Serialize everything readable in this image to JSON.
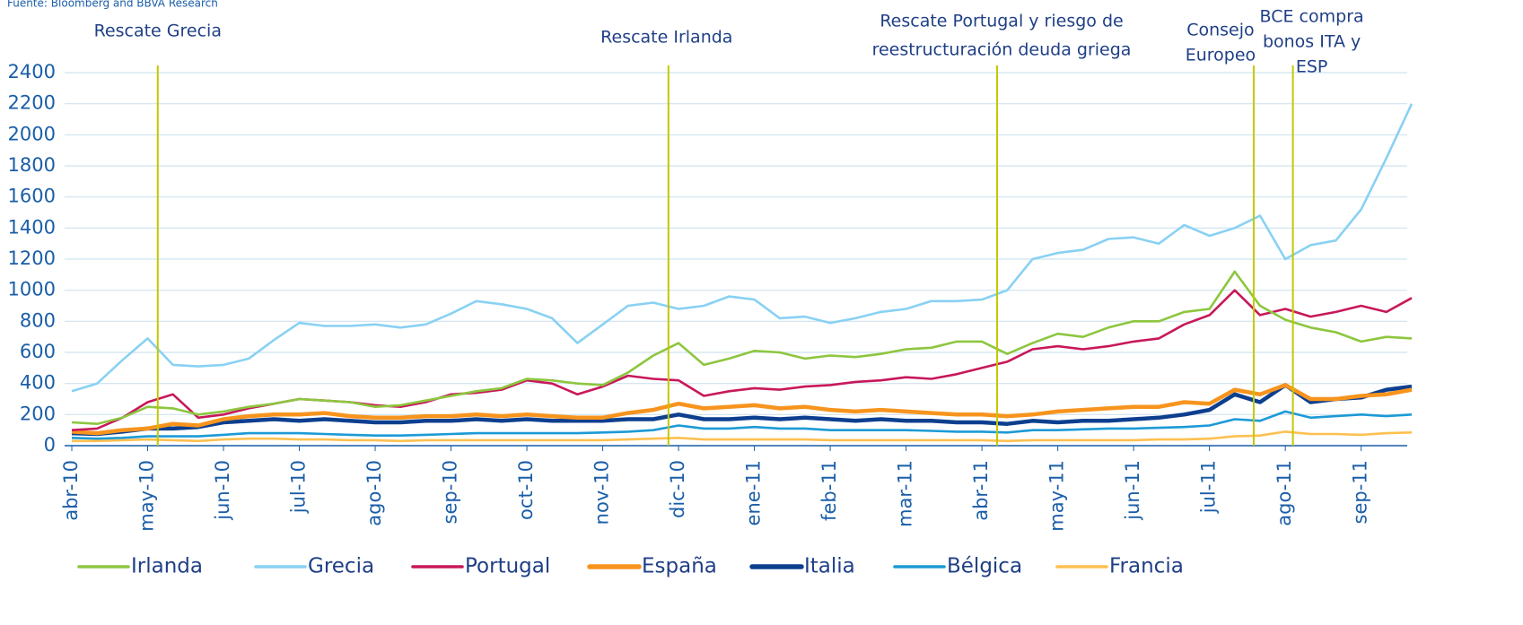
{
  "chart_data": {
    "type": "line",
    "source": "Fuente: Bloomberg and BBVA Research",
    "categories": [
      "abr-10",
      null,
      null,
      "may-10",
      null,
      null,
      "jun-10",
      null,
      null,
      "jul-10",
      null,
      null,
      "ago-10",
      null,
      null,
      "sep-10",
      null,
      null,
      "oct-10",
      null,
      null,
      "nov-10",
      null,
      null,
      "dic-10",
      null,
      null,
      "ene-11",
      null,
      null,
      "feb-11",
      null,
      null,
      "mar-11",
      null,
      null,
      "abr-11",
      null,
      null,
      "may-11",
      null,
      null,
      "jun-11",
      null,
      null,
      "jul-11",
      null,
      null,
      "ago-11",
      null,
      null,
      "sep-11",
      null,
      null
    ],
    "ylim": [
      0,
      2400
    ],
    "yticks": [
      0,
      200,
      400,
      600,
      800,
      1000,
      1200,
      1400,
      1600,
      1800,
      2000,
      2200,
      2400
    ],
    "grid": true,
    "annotations": [
      {
        "lines": [
          "Rescate Grecia"
        ],
        "x": 3.4
      },
      {
        "lines": [
          "Rescate Irlanda"
        ],
        "x": 23.6
      },
      {
        "lines": [
          "Rescate Portugal  y riesgo de",
          "reestructuración deuda griega"
        ],
        "x": 36.6
      },
      {
        "lines": [
          "Consejo",
          "Europeo"
        ],
        "x": 46.75
      },
      {
        "lines": [
          "BCE compra",
          "bonos ITA y",
          "ESP"
        ],
        "x": 48.3
      }
    ],
    "series": [
      {
        "name": "Irlanda",
        "color": "#8dc63f",
        "values": [
          150,
          140,
          180,
          250,
          240,
          200,
          220,
          250,
          270,
          300,
          290,
          280,
          250,
          260,
          290,
          320,
          350,
          370,
          430,
          420,
          400,
          390,
          470,
          580,
          660,
          520,
          560,
          610,
          600,
          560,
          580,
          570,
          590,
          620,
          630,
          670,
          670,
          590,
          660,
          720,
          700,
          760,
          800,
          800,
          860,
          880,
          1120,
          900,
          810,
          760,
          730,
          670,
          700,
          690
        ]
      },
      {
        "name": "Grecia",
        "color": "#89d1f3",
        "values": [
          350,
          400,
          550,
          690,
          520,
          510,
          520,
          560,
          680,
          790,
          770,
          770,
          780,
          760,
          780,
          850,
          930,
          910,
          880,
          820,
          660,
          780,
          900,
          920,
          880,
          900,
          960,
          940,
          820,
          830,
          790,
          820,
          860,
          880,
          930,
          930,
          940,
          1000,
          1200,
          1240,
          1260,
          1330,
          1340,
          1300,
          1420,
          1350,
          1400,
          1480,
          1200,
          1290,
          1320,
          1520,
          1850,
          2200
        ]
      },
      {
        "name": "Portugal",
        "color": "#c8185a",
        "values": [
          100,
          110,
          180,
          280,
          330,
          180,
          200,
          240,
          270,
          300,
          290,
          280,
          260,
          250,
          280,
          330,
          340,
          360,
          420,
          400,
          330,
          380,
          450,
          430,
          420,
          320,
          350,
          370,
          360,
          380,
          390,
          410,
          420,
          440,
          430,
          460,
          500,
          540,
          620,
          640,
          620,
          640,
          670,
          690,
          780,
          840,
          1000,
          840,
          880,
          830,
          860,
          900,
          860,
          950
        ]
      },
      {
        "name": "España",
        "color": "#f7941d",
        "values": [
          90,
          80,
          100,
          110,
          140,
          130,
          170,
          190,
          200,
          200,
          210,
          190,
          180,
          180,
          190,
          190,
          200,
          190,
          200,
          190,
          180,
          180,
          210,
          230,
          270,
          240,
          250,
          260,
          240,
          250,
          230,
          220,
          230,
          220,
          210,
          200,
          200,
          190,
          200,
          220,
          230,
          240,
          250,
          250,
          280,
          270,
          360,
          330,
          390,
          300,
          300,
          320,
          330,
          360
        ]
      },
      {
        "name": "Italia",
        "color": "#0d3f8f",
        "values": [
          80,
          75,
          90,
          110,
          110,
          120,
          150,
          160,
          170,
          160,
          170,
          160,
          150,
          150,
          160,
          160,
          170,
          160,
          170,
          160,
          160,
          160,
          170,
          170,
          200,
          170,
          170,
          180,
          170,
          180,
          170,
          160,
          170,
          160,
          160,
          150,
          150,
          140,
          160,
          150,
          160,
          160,
          170,
          180,
          200,
          230,
          330,
          280,
          390,
          280,
          300,
          310,
          360,
          380
        ]
      },
      {
        "name": "Bélgica",
        "color": "#1c9ad6",
        "values": [
          50,
          45,
          50,
          60,
          60,
          60,
          70,
          80,
          80,
          80,
          75,
          70,
          65,
          65,
          70,
          75,
          80,
          80,
          80,
          80,
          80,
          85,
          90,
          100,
          130,
          110,
          110,
          120,
          110,
          110,
          100,
          100,
          100,
          100,
          95,
          90,
          90,
          85,
          100,
          100,
          105,
          110,
          110,
          115,
          120,
          130,
          170,
          160,
          220,
          180,
          190,
          200,
          190,
          200
        ]
      },
      {
        "name": "Francia",
        "color": "#fdc04f",
        "values": [
          30,
          30,
          35,
          40,
          35,
          30,
          40,
          45,
          45,
          40,
          40,
          35,
          35,
          30,
          35,
          35,
          35,
          35,
          35,
          35,
          35,
          35,
          40,
          45,
          50,
          40,
          40,
          40,
          40,
          40,
          35,
          35,
          35,
          35,
          35,
          35,
          35,
          30,
          35,
          35,
          35,
          35,
          35,
          40,
          40,
          45,
          60,
          65,
          90,
          75,
          75,
          70,
          80,
          85
        ]
      }
    ]
  }
}
